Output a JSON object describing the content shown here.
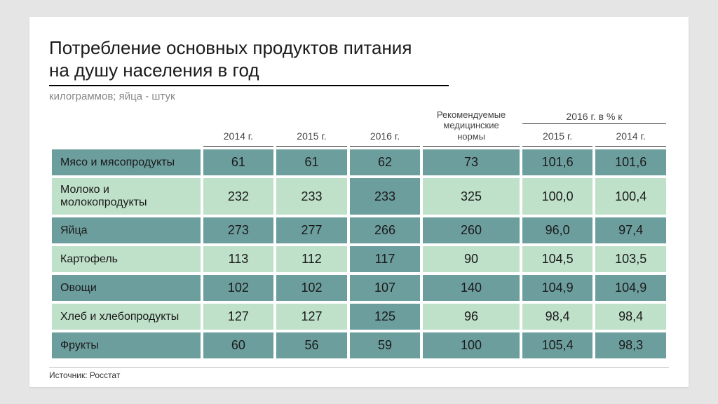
{
  "title_line1": "Потребление основных продуктов питания",
  "title_line2": "на душу населения в год",
  "subtitle": "килограммов; яйца - штук",
  "source": "Источник: Росстат",
  "colors": {
    "dark": "#6d9e9e",
    "light": "#bfe0c9",
    "highlight_col": 2
  },
  "headers": {
    "years": [
      "2014 г.",
      "2015 г.",
      "2016 г."
    ],
    "norms_line1": "Рекомендуемые",
    "norms_line2": "медицинские",
    "norms_line3": "нормы",
    "pct_group": "2016 г. в % к",
    "pct_cols": [
      "2015 г.",
      "2014 г."
    ]
  },
  "rows": [
    {
      "label": "Мясо и мясопродукты",
      "v14": "61",
      "v15": "61",
      "v16": "62",
      "norm": "73",
      "p15": "101,6",
      "p14": "101,6"
    },
    {
      "label": "Молоко и молокопродукты",
      "v14": "232",
      "v15": "233",
      "v16": "233",
      "norm": "325",
      "p15": "100,0",
      "p14": "100,4"
    },
    {
      "label": "Яйца",
      "v14": "273",
      "v15": "277",
      "v16": "266",
      "norm": "260",
      "p15": "96,0",
      "p14": "97,4"
    },
    {
      "label": "Картофель",
      "v14": "113",
      "v15": "112",
      "v16": "117",
      "norm": "90",
      "p15": "104,5",
      "p14": "103,5"
    },
    {
      "label": "Овощи",
      "v14": "102",
      "v15": "102",
      "v16": "107",
      "norm": "140",
      "p15": "104,9",
      "p14": "104,9"
    },
    {
      "label": "Хлеб и хлебопродукты",
      "v14": "127",
      "v15": "127",
      "v16": "125",
      "norm": "96",
      "p15": "98,4",
      "p14": "98,4"
    },
    {
      "label": "Фрукты",
      "v14": "60",
      "v15": "56",
      "v16": "59",
      "norm": "100",
      "p15": "105,4",
      "p14": "98,3"
    }
  ]
}
